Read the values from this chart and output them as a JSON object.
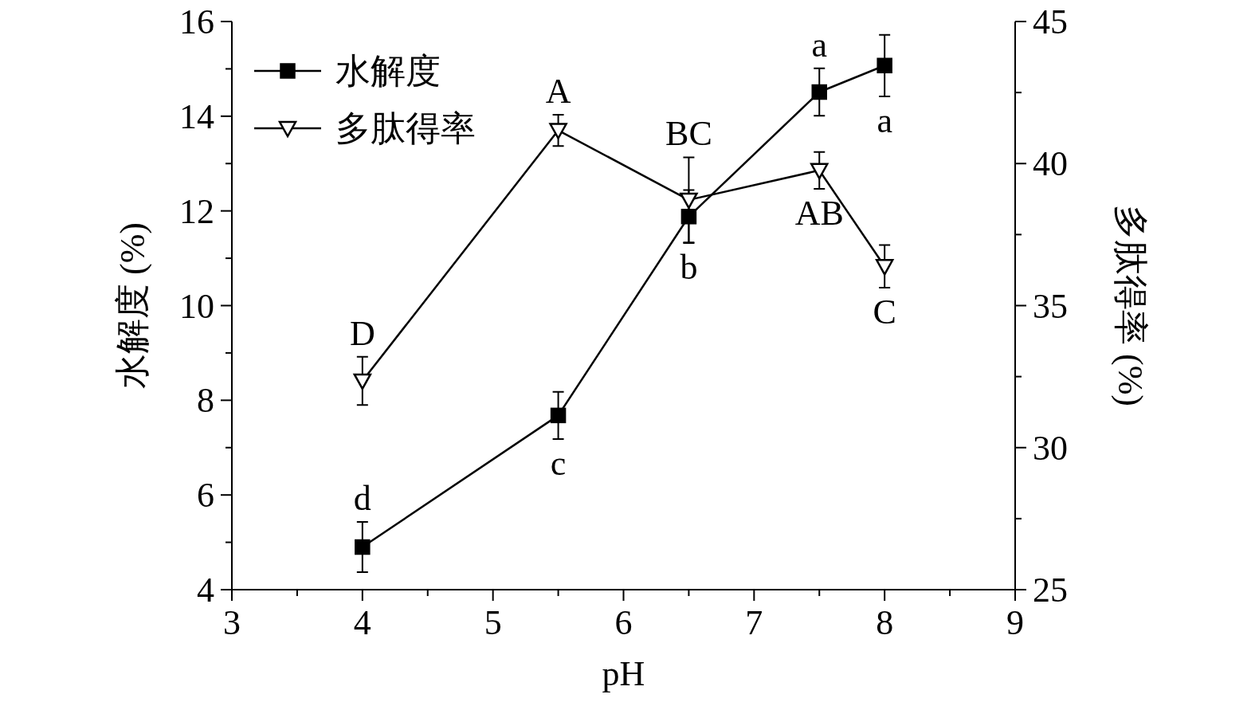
{
  "chart_data": {
    "type": "line",
    "xlabel": "pH",
    "ylabel": "水解度 (%)",
    "y2label": "多肽得率 (%)",
    "x": [
      4,
      5.5,
      6.5,
      7.5,
      8
    ],
    "series": [
      {
        "name": "水解度",
        "color": "#000000",
        "marker": "square",
        "values": [
          4.9,
          7.68,
          11.88,
          14.51,
          15.07
        ],
        "errors": [
          0.53,
          0.5,
          0.56,
          0.5,
          0.65
        ],
        "value_labels": [
          "d",
          "c",
          "b",
          "a",
          "a"
        ]
      },
      {
        "name": "多肽得率",
        "color": "#000000",
        "marker": "triangle",
        "axis": "y2",
        "values": [
          32.35,
          41.17,
          38.72,
          39.76,
          36.38
        ],
        "errors": [
          0.85,
          0.55,
          1.5,
          0.65,
          0.75
        ],
        "value_labels": [
          "D",
          "A",
          "BC",
          "AB",
          "C"
        ]
      }
    ],
    "xlim": [
      3,
      9
    ],
    "xticks": [
      3,
      {
        "value": 3.5,
        "label": null
      },
      4,
      {
        "value": 4.5,
        "label": null
      },
      5,
      {
        "value": 5.5,
        "label": null
      },
      6,
      {
        "value": 6.5,
        "label": null
      },
      7,
      {
        "value": 7.5,
        "label": null
      },
      8,
      {
        "value": 8.5,
        "label": null
      },
      9
    ],
    "ylim": [
      4,
      16
    ],
    "yticks": [
      4,
      {
        "value": 5,
        "label": null
      },
      6,
      {
        "value": 7,
        "label": null
      },
      8,
      {
        "value": 9,
        "label": null
      },
      10,
      {
        "value": 11,
        "label": null
      },
      12,
      {
        "value": 13,
        "label": null
      },
      14,
      {
        "value": 15,
        "label": null
      },
      16
    ],
    "y2lim": [
      25,
      45
    ],
    "y2ticks": [
      25,
      {
        "value": 27.5,
        "label": null
      },
      30,
      {
        "value": 32.5,
        "label": null
      },
      35,
      {
        "value": 37.5,
        "label": null
      },
      40,
      {
        "value": 42.5,
        "label": null
      },
      45
    ],
    "legend": "top left",
    "line_style": "solid"
  }
}
